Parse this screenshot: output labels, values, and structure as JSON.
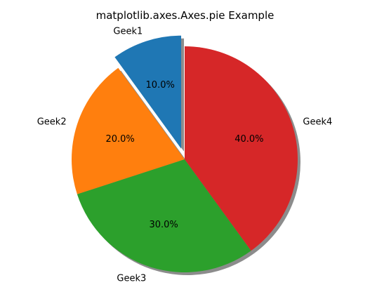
{
  "chart_data": {
    "type": "pie",
    "title": "matplotlib.axes.Axes.pie Example",
    "categories": [
      "Geek1",
      "Geek2",
      "Geek3",
      "Geek4"
    ],
    "values": [
      10,
      20,
      30,
      40
    ],
    "percent_labels": [
      "10.0%",
      "20.0%",
      "30.0%",
      "40.0%"
    ],
    "colors": [
      "#1f77b4",
      "#ff7f0e",
      "#2ca02c",
      "#d62728"
    ],
    "explode": [
      0.1,
      0,
      0,
      0
    ],
    "start_angle_deg": 90,
    "direction": "counterclockwise",
    "shadow": true,
    "legend": "none",
    "grid": false
  }
}
